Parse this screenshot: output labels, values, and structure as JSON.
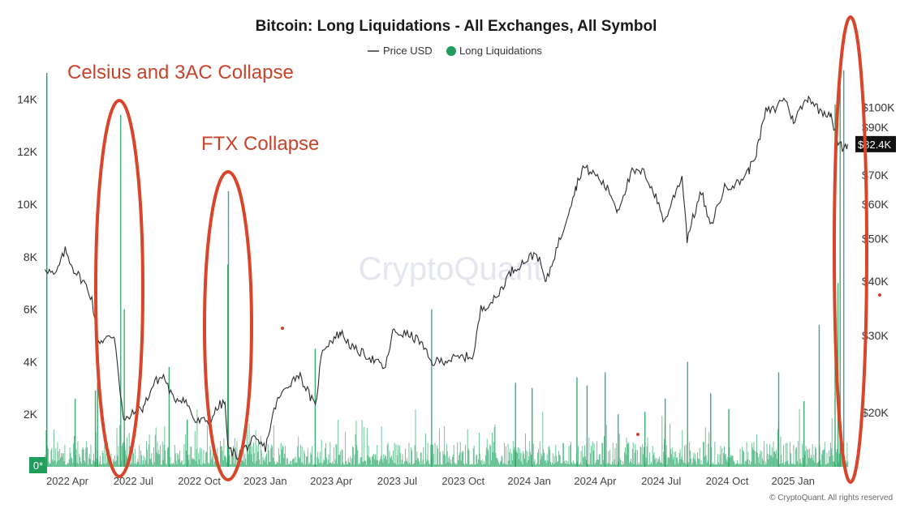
{
  "chart_data": {
    "type": "bar",
    "title": "Bitcoin: Long Liquidations - All Exchanges, All Symbol",
    "legend": {
      "placement": "top-center",
      "items": [
        {
          "label": "Price USD",
          "color": "#333333",
          "marker": "line"
        },
        {
          "label": "Long Liquidations",
          "color": "#1f9d5b",
          "marker": "dot"
        }
      ]
    },
    "x_ticks": [
      "2022 Apr",
      "2022 Jul",
      "2022 Oct",
      "2023 Jan",
      "2023 Apr",
      "2023 Jul",
      "2023 Oct",
      "2024 Jan",
      "2024 Apr",
      "2024 Jul",
      "2024 Oct",
      "2025 Jan"
    ],
    "y_left": {
      "ticks": [
        "0*",
        "2K",
        "4K",
        "6K",
        "8K",
        "10K",
        "12K",
        "14K"
      ],
      "values": [
        0,
        2000,
        4000,
        6000,
        8000,
        10000,
        12000,
        14000
      ],
      "ylim": [
        0,
        15000
      ]
    },
    "y_right": {
      "scale": "log",
      "ticks": [
        "$20K",
        "$30K",
        "$40K",
        "$50K",
        "$60K",
        "$70K",
        "$90K",
        "$100K"
      ],
      "values": [
        20000,
        30000,
        40000,
        50000,
        60000,
        70000,
        90000,
        100000
      ],
      "ylim": [
        15000,
        120000
      ]
    },
    "price_last_label": "$82.4K",
    "grid": false,
    "series": [
      {
        "name": "Price USD",
        "type": "line",
        "points": [
          [
            "2022-03-01",
            43000
          ],
          [
            "2022-03-15",
            41000
          ],
          [
            "2022-03-29",
            47000
          ],
          [
            "2022-04-10",
            42500
          ],
          [
            "2022-04-25",
            39500
          ],
          [
            "2022-05-05",
            36500
          ],
          [
            "2022-05-12",
            29000
          ],
          [
            "2022-05-25",
            29500
          ],
          [
            "2022-06-05",
            30000
          ],
          [
            "2022-06-13",
            22500
          ],
          [
            "2022-06-18",
            19000
          ],
          [
            "2022-06-30",
            19800
          ],
          [
            "2022-07-15",
            20500
          ],
          [
            "2022-07-31",
            23500
          ],
          [
            "2022-08-12",
            24200
          ],
          [
            "2022-08-25",
            21500
          ],
          [
            "2022-09-10",
            21500
          ],
          [
            "2022-09-25",
            19000
          ],
          [
            "2022-10-15",
            19200
          ],
          [
            "2022-10-29",
            20800
          ],
          [
            "2022-11-05",
            21000
          ],
          [
            "2022-11-09",
            16500
          ],
          [
            "2022-11-22",
            15900
          ],
          [
            "2022-12-15",
            17300
          ],
          [
            "2022-12-31",
            16600
          ],
          [
            "2023-01-15",
            21000
          ],
          [
            "2023-01-31",
            23100
          ],
          [
            "2023-02-15",
            24500
          ],
          [
            "2023-03-10",
            20500
          ],
          [
            "2023-03-20",
            28000
          ],
          [
            "2023-04-14",
            30500
          ],
          [
            "2023-05-01",
            28000
          ],
          [
            "2023-05-20",
            27000
          ],
          [
            "2023-06-15",
            25200
          ],
          [
            "2023-06-25",
            30500
          ],
          [
            "2023-07-15",
            30200
          ],
          [
            "2023-08-01",
            29200
          ],
          [
            "2023-08-17",
            26000
          ],
          [
            "2023-09-15",
            26500
          ],
          [
            "2023-10-15",
            27000
          ],
          [
            "2023-10-25",
            34500
          ],
          [
            "2023-11-15",
            36500
          ],
          [
            "2023-12-05",
            42000
          ],
          [
            "2024-01-10",
            46500
          ],
          [
            "2024-01-23",
            39500
          ],
          [
            "2024-02-15",
            52000
          ],
          [
            "2024-03-05",
            66000
          ],
          [
            "2024-03-14",
            73000
          ],
          [
            "2024-04-01",
            70000
          ],
          [
            "2024-04-20",
            64000
          ],
          [
            "2024-05-01",
            58000
          ],
          [
            "2024-05-21",
            71000
          ],
          [
            "2024-06-07",
            71000
          ],
          [
            "2024-06-25",
            61000
          ],
          [
            "2024-07-05",
            54500
          ],
          [
            "2024-07-29",
            69500
          ],
          [
            "2024-08-05",
            50000
          ],
          [
            "2024-08-25",
            64000
          ],
          [
            "2024-09-06",
            53000
          ],
          [
            "2024-09-27",
            66000
          ],
          [
            "2024-10-15",
            67000
          ],
          [
            "2024-10-30",
            72000
          ],
          [
            "2024-11-10",
            80000
          ],
          [
            "2024-11-22",
            98000
          ],
          [
            "2024-12-05",
            99000
          ],
          [
            "2024-12-17",
            106000
          ],
          [
            "2024-12-30",
            93000
          ],
          [
            "2025-01-20",
            106000
          ],
          [
            "2025-02-05",
            98000
          ],
          [
            "2025-02-20",
            97000
          ],
          [
            "2025-02-28",
            84000
          ],
          [
            "2025-03-10",
            80000
          ],
          [
            "2025-03-15",
            82400
          ]
        ]
      },
      {
        "name": "Long Liquidations",
        "type": "bar",
        "spikes": [
          [
            "2022-04-11",
            2600
          ],
          [
            "2022-05-09",
            2900
          ],
          [
            "2022-05-12",
            3200
          ],
          [
            "2022-06-13",
            13400
          ],
          [
            "2022-06-18",
            6000
          ],
          [
            "2022-08-19",
            3800
          ],
          [
            "2022-09-13",
            1800
          ],
          [
            "2022-11-08",
            7700
          ],
          [
            "2022-11-09",
            10500
          ],
          [
            "2023-03-09",
            4500
          ],
          [
            "2023-08-17",
            6000
          ],
          [
            "2023-12-11",
            3200
          ],
          [
            "2024-01-03",
            3000
          ],
          [
            "2024-03-05",
            3400
          ],
          [
            "2024-03-19",
            3100
          ],
          [
            "2024-04-13",
            3600
          ],
          [
            "2024-05-01",
            2000
          ],
          [
            "2024-06-07",
            2100
          ],
          [
            "2024-07-05",
            2600
          ],
          [
            "2024-08-05",
            4000
          ],
          [
            "2024-09-06",
            2800
          ],
          [
            "2024-10-01",
            2200
          ],
          [
            "2024-12-09",
            3600
          ],
          [
            "2025-01-13",
            2500
          ],
          [
            "2025-02-03",
            5400
          ],
          [
            "2025-02-25",
            13800
          ],
          [
            "2025-03-01",
            7000
          ],
          [
            "2025-03-04",
            14400
          ],
          [
            "2025-03-09",
            15100
          ]
        ]
      }
    ],
    "annotations": [
      {
        "text": "Celsius and 3AC Collapse",
        "date": "2022-06-15"
      },
      {
        "text": "FTX Collapse",
        "date": "2022-11-09"
      }
    ],
    "highlighted_events": [
      {
        "date": "2022-06-15"
      },
      {
        "date": "2022-11-09"
      },
      {
        "date": "2025-03-01"
      }
    ]
  },
  "watermark": "CryptoQuant",
  "credit": "© CryptoQuant. All rights reserved"
}
